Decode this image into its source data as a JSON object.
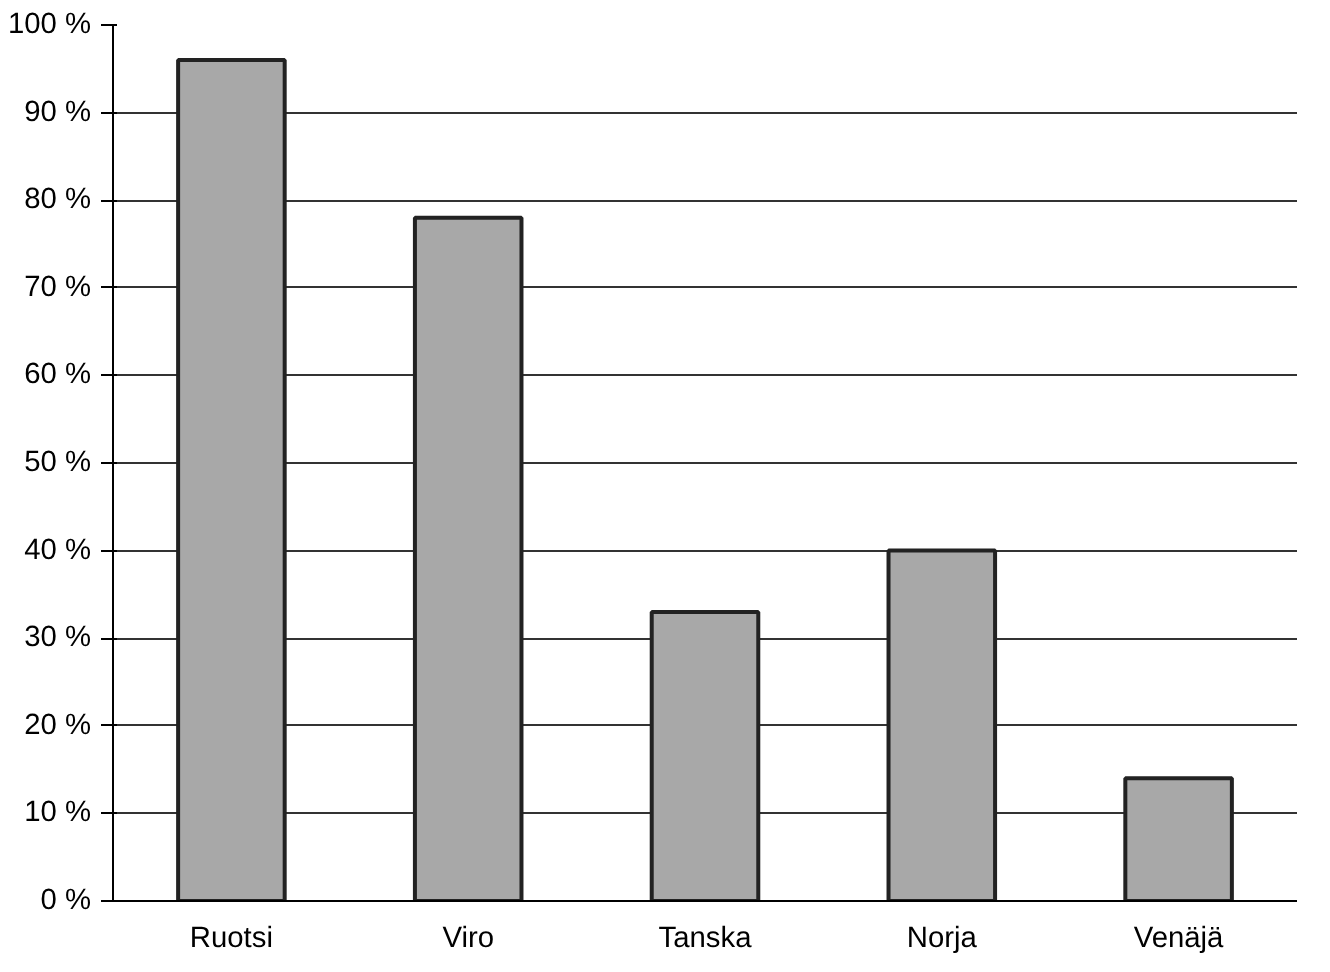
{
  "chart_data": {
    "type": "bar",
    "categories": [
      "Ruotsi",
      "Viro",
      "Tanska",
      "Norja",
      "Venäjä"
    ],
    "values": [
      96,
      78,
      33,
      40,
      14
    ],
    "color": "#a8a8a8",
    "ylim": [
      0,
      100
    ],
    "yticks": [
      {
        "value": 0,
        "label": "0 %"
      },
      {
        "value": 10,
        "label": "10 %"
      },
      {
        "value": 20,
        "label": "20 %"
      },
      {
        "value": 30,
        "label": "30 %"
      },
      {
        "value": 40,
        "label": "40 %"
      },
      {
        "value": 50,
        "label": "50 %"
      },
      {
        "value": 60,
        "label": "60 %"
      },
      {
        "value": 70,
        "label": "70 %"
      },
      {
        "value": 80,
        "label": "80 %"
      },
      {
        "value": 90,
        "label": "90 %"
      },
      {
        "value": 100,
        "label": "100 %"
      }
    ],
    "grid": "y"
  }
}
